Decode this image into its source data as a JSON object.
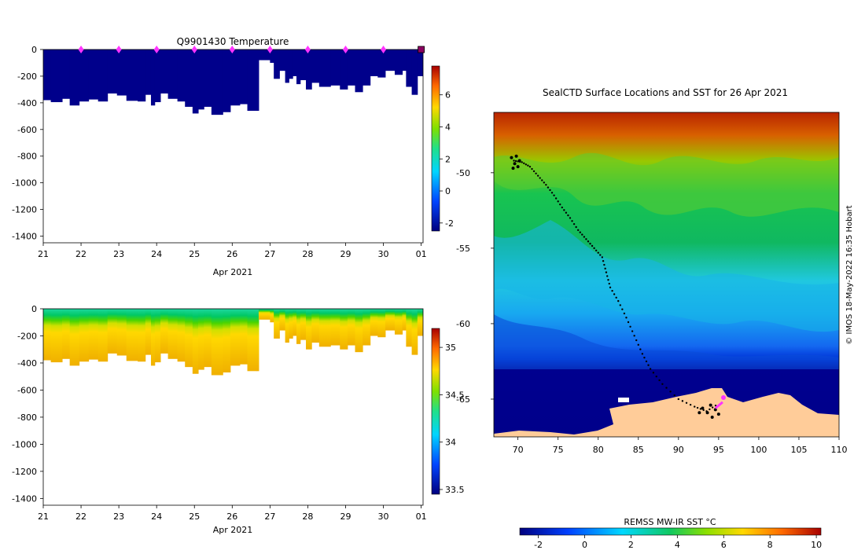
{
  "colors": {
    "temperature_fill": "#00008b",
    "land": "#ffcc99",
    "marker": "#ff33ff"
  },
  "chart_data": [
    {
      "type": "heatmap",
      "title": "Q9901430  Temperature",
      "xlabel": "Apr 2021",
      "x_ticks": [
        "21",
        "22",
        "23",
        "24",
        "25",
        "26",
        "27",
        "28",
        "29",
        "30",
        "01"
      ],
      "y_ticks": [
        "0",
        "-200",
        "-400",
        "-600",
        "-800",
        "-1000",
        "-1200",
        "-1400"
      ],
      "ylim": [
        -1450,
        0
      ],
      "xlim": [
        21,
        31.05
      ],
      "profile_markers": [
        22,
        23,
        24,
        25,
        26,
        27,
        28,
        29,
        30,
        31
      ],
      "colorbar_ticks": [
        "6",
        "4",
        "2",
        "0",
        "-2"
      ],
      "colorbar_range": [
        -2.5,
        7.8
      ],
      "dive_depths": [
        [
          21.0,
          -380
        ],
        [
          21.2,
          -395
        ],
        [
          21.5,
          -370
        ],
        [
          21.7,
          -420
        ],
        [
          21.95,
          -390
        ],
        [
          22.2,
          -375
        ],
        [
          22.45,
          -390
        ],
        [
          22.7,
          -330
        ],
        [
          22.95,
          -345
        ],
        [
          23.2,
          -385
        ],
        [
          23.5,
          -390
        ],
        [
          23.7,
          -340
        ],
        [
          23.85,
          -420
        ],
        [
          23.95,
          -395
        ],
        [
          24.1,
          -330
        ],
        [
          24.3,
          -370
        ],
        [
          24.55,
          -390
        ],
        [
          24.75,
          -430
        ],
        [
          24.95,
          -480
        ],
        [
          25.1,
          -450
        ],
        [
          25.25,
          -430
        ],
        [
          25.45,
          -490
        ],
        [
          25.75,
          -470
        ],
        [
          25.95,
          -420
        ],
        [
          26.2,
          -410
        ],
        [
          26.4,
          -460
        ],
        [
          26.65,
          -460
        ],
        [
          26.7,
          -80
        ],
        [
          27.0,
          -100
        ],
        [
          27.1,
          -220
        ],
        [
          27.25,
          -160
        ],
        [
          27.4,
          -250
        ],
        [
          27.5,
          -220
        ],
        [
          27.6,
          -200
        ],
        [
          27.7,
          -260
        ],
        [
          27.8,
          -230
        ],
        [
          27.95,
          -300
        ],
        [
          28.1,
          -250
        ],
        [
          28.3,
          -280
        ],
        [
          28.6,
          -270
        ],
        [
          28.85,
          -300
        ],
        [
          29.05,
          -270
        ],
        [
          29.25,
          -320
        ],
        [
          29.45,
          -270
        ],
        [
          29.65,
          -200
        ],
        [
          29.85,
          -210
        ],
        [
          30.05,
          -160
        ],
        [
          30.3,
          -190
        ],
        [
          30.5,
          -160
        ],
        [
          30.6,
          -280
        ],
        [
          30.75,
          -340
        ],
        [
          30.9,
          -200
        ],
        [
          31.05,
          -180
        ]
      ]
    },
    {
      "type": "heatmap",
      "title": "",
      "xlabel": "Apr 2021",
      "x_ticks": [
        "21",
        "22",
        "23",
        "24",
        "25",
        "26",
        "27",
        "28",
        "29",
        "30",
        "01"
      ],
      "y_ticks": [
        "0",
        "-200",
        "-400",
        "-600",
        "-800",
        "-1000",
        "-1200",
        "-1400"
      ],
      "ylim": [
        -1450,
        0
      ],
      "xlim": [
        21,
        31.05
      ],
      "colorbar_ticks": [
        "35",
        "34.5",
        "34",
        "33.5"
      ],
      "colorbar_range": [
        33.45,
        35.2
      ]
    },
    {
      "type": "heatmap",
      "title": "SealCTD Surface Locations and SST for 26 Apr 2021",
      "x_ticks": [
        "70",
        "75",
        "80",
        "85",
        "90",
        "95",
        "100",
        "105",
        "110"
      ],
      "y_ticks": [
        "-50",
        "-55",
        "-60",
        "-65"
      ],
      "xlim": [
        67,
        110
      ],
      "ylim": [
        -67.5,
        -46
      ],
      "colorbar_label": "REMSS MW-IR SST °C",
      "colorbar_ticks": [
        "-2",
        "0",
        "2",
        "4",
        "6",
        "8",
        "10"
      ],
      "colorbar_range": [
        -2.8,
        10.2
      ],
      "track": [
        [
          69.5,
          -49.2
        ],
        [
          70.5,
          -49.3
        ],
        [
          71.5,
          -49.6
        ],
        [
          72.5,
          -50.2
        ],
        [
          73.5,
          -50.8
        ],
        [
          74.5,
          -51.5
        ],
        [
          75.5,
          -52.3
        ],
        [
          76.5,
          -53
        ],
        [
          77.5,
          -53.8
        ],
        [
          78.5,
          -54.4
        ],
        [
          79.5,
          -55
        ],
        [
          80.5,
          -55.6
        ],
        [
          81.0,
          -56.6
        ],
        [
          81.5,
          -57.6
        ],
        [
          82.5,
          -58.5
        ],
        [
          83.5,
          -59.6
        ],
        [
          84.5,
          -60.8
        ],
        [
          85.5,
          -62
        ],
        [
          86.5,
          -63
        ],
        [
          88,
          -64
        ],
        [
          90,
          -65
        ],
        [
          92,
          -65.5
        ],
        [
          93.5,
          -65.8
        ],
        [
          95,
          -65.3
        ]
      ],
      "markers": [
        [
          95.6,
          -64.9
        ]
      ]
    }
  ],
  "watermark": "© IMOS 18-May-2022 16:35 Hobart"
}
